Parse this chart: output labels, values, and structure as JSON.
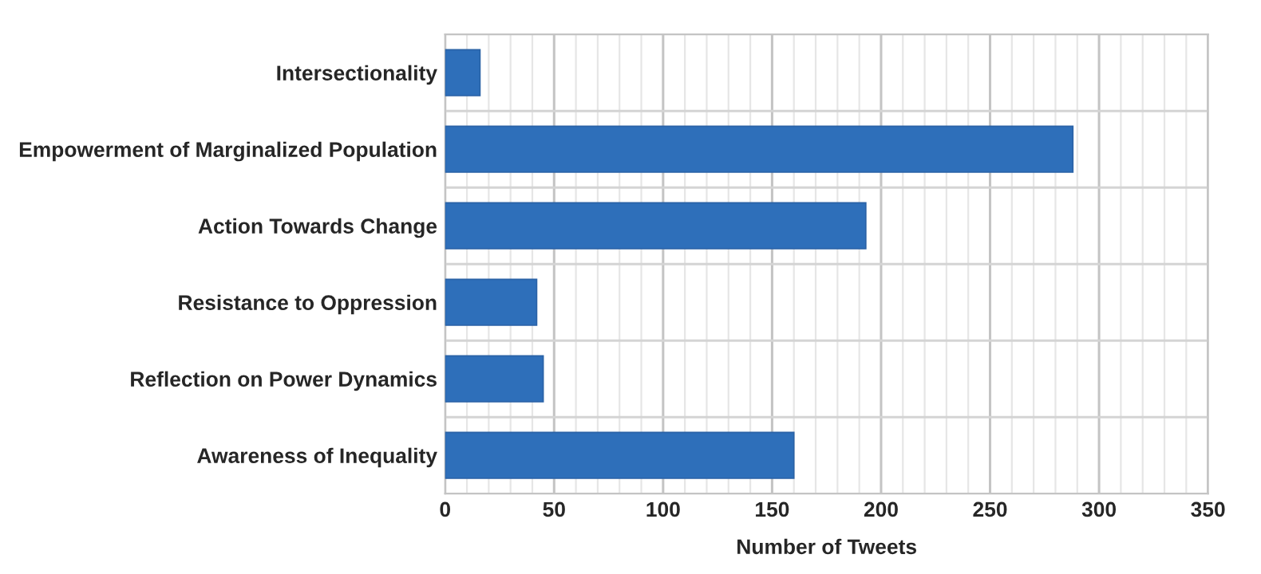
{
  "chart_data": {
    "type": "bar",
    "orientation": "horizontal",
    "xlabel": "Number of Tweets",
    "categories": [
      "Intersectionality",
      "Empowerment of Marginalized Population",
      "Action Towards Change",
      "Resistance to Oppression",
      "Reflection on Power Dynamics",
      "Awareness of Inequality"
    ],
    "values": [
      16,
      288,
      193,
      42,
      45,
      160
    ],
    "color": "#2e6fba",
    "xlim": [
      0,
      350
    ],
    "xticks": [
      0,
      50,
      100,
      150,
      200,
      250,
      300,
      350
    ],
    "grid": true,
    "legend": false
  }
}
